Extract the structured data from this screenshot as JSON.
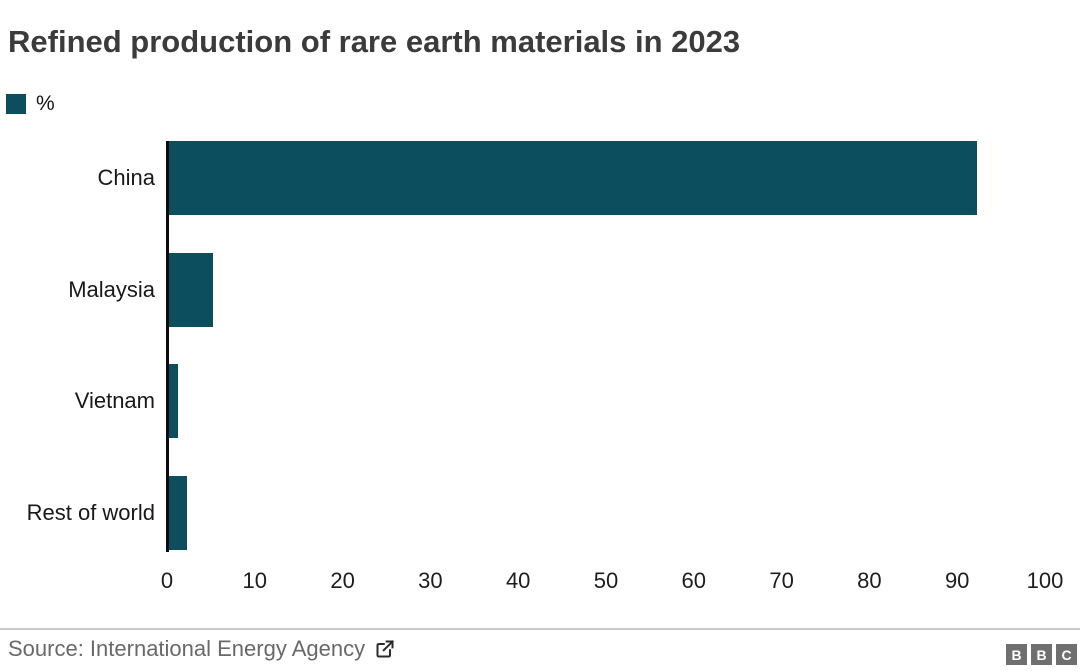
{
  "header": {
    "title": "Refined production of rare earth materials in 2023"
  },
  "legend": {
    "label": "%",
    "swatch_color": "#0d4e5e"
  },
  "chart_data": {
    "type": "bar",
    "orientation": "horizontal",
    "title": "Refined production of rare earth materials in 2023",
    "categories": [
      "China",
      "Malaysia",
      "Vietnam",
      "Rest of world"
    ],
    "values": [
      92,
      5,
      1,
      2
    ],
    "unit": "%",
    "xlabel": "",
    "ylabel": "",
    "xlim": [
      0,
      100
    ],
    "x_ticks": [
      0,
      10,
      20,
      30,
      40,
      50,
      60,
      70,
      80,
      90,
      100
    ],
    "grid": false,
    "legend_position": "top-left",
    "legend_entries": [
      "%"
    ],
    "bar_color": "#0d4e5e",
    "axis_line_color": "#0b0b0b"
  },
  "footer": {
    "source_label": "Source: International Energy Agency",
    "logo_letters": [
      "B",
      "B",
      "C"
    ]
  },
  "colors": {
    "bar": "#0d4e5e",
    "title_text": "#3b3b3b",
    "label_text": "#191919",
    "source_text": "#696969",
    "logo_background": "#6f6f6f",
    "divider": "#c9c9c9"
  }
}
